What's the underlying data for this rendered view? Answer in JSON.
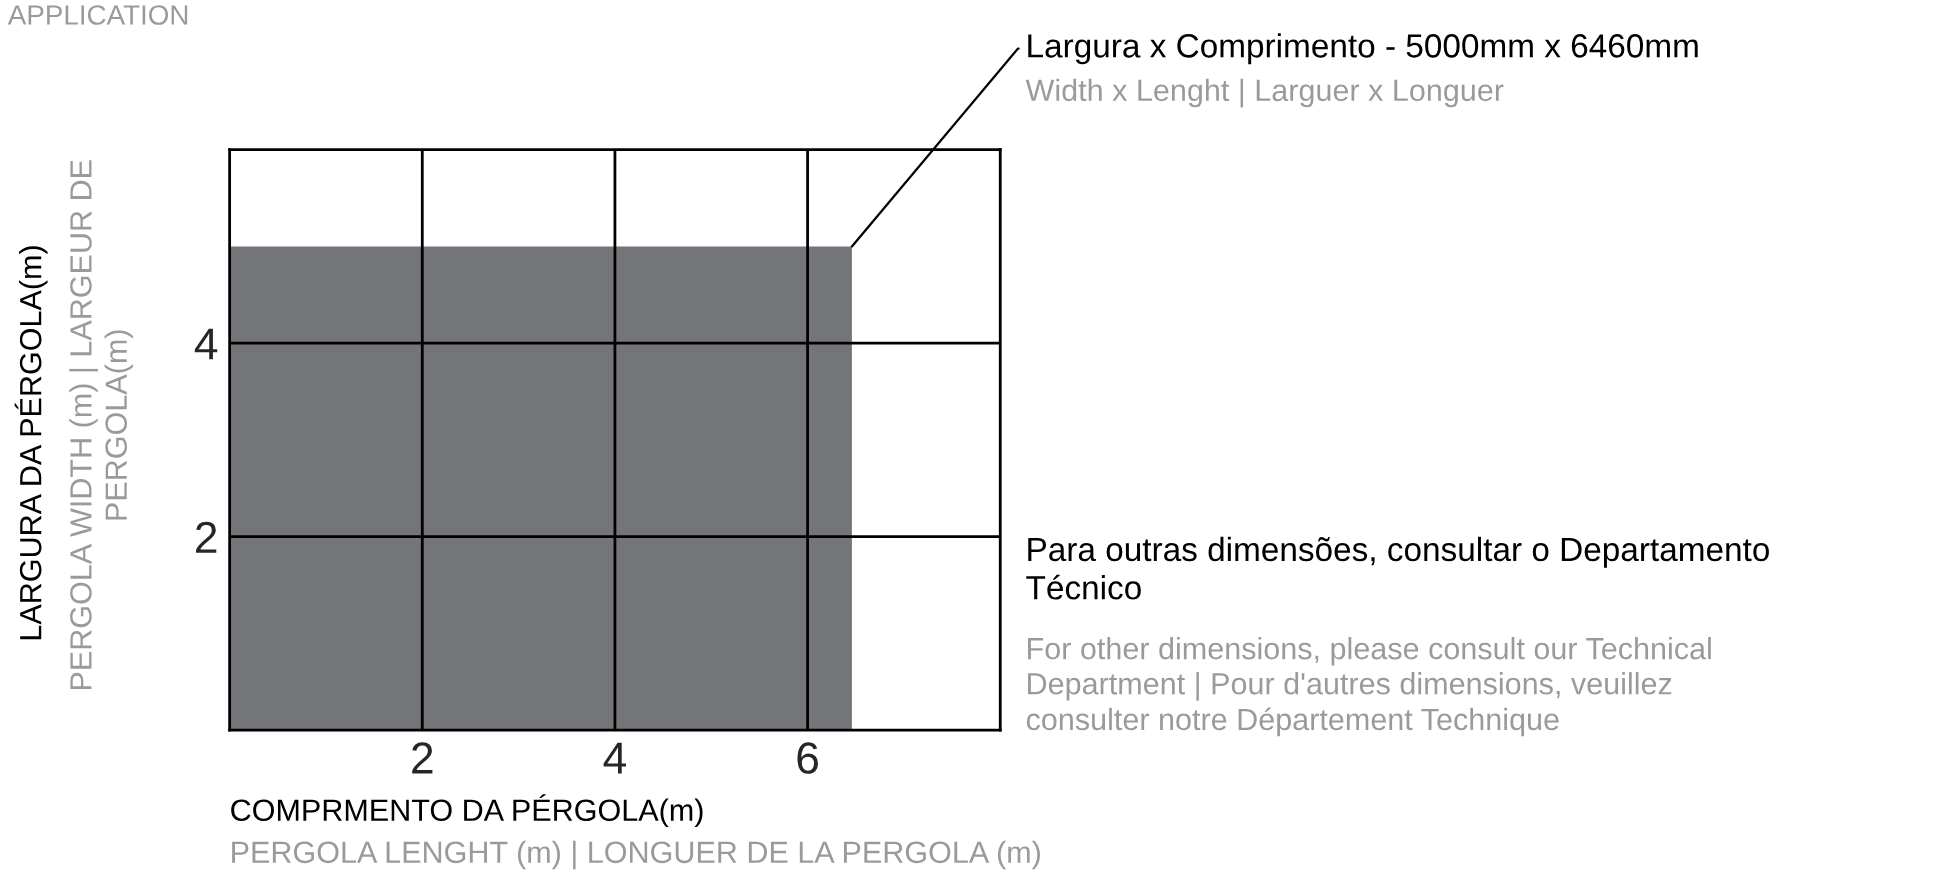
{
  "chart_data": {
    "type": "area",
    "title": "APPLICATION",
    "xlabel": "COMPRMENTO DA PÉRGOLA(m)",
    "ylabel": "LARGURA DA PÉRGOLA(m)",
    "x": [
      0,
      6.46
    ],
    "series": [
      {
        "color": "#747578",
        "values": [
          5,
          5
        ]
      }
    ],
    "xlim": [
      0,
      8
    ],
    "ylim": [
      0,
      6
    ],
    "xticks": [
      2,
      4,
      6
    ],
    "yticks": [
      2,
      4
    ],
    "grid": true,
    "annotations": [
      "PERGOLA LENGHT (m) | LONGUER DE LA PERGOLA (m)",
      "PERGOLA WIDTH (m) | LARGEUR DE\nPERGOLA(m)",
      {
        "text": "Largura x Comprimento - 5000mm x 6460mm",
        "x": 6.46,
        "y": 5
      },
      "Width x Lenght | Larguer x Longuer",
      "Para outras dimensões, consultar o Departamento\nTécnico",
      "For other dimensions, please consult our Technical\nDepartment | Pour d'autres dimensions, veuillez\nconsulter notre Département Technique"
    ]
  }
}
